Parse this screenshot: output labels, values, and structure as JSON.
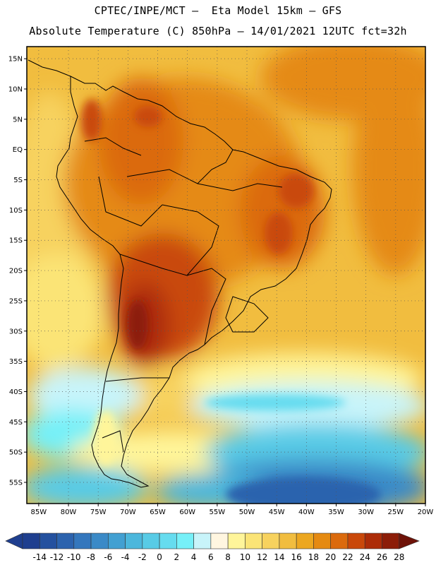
{
  "header": {
    "line1": "CPTEC/INPE/MCT –  Eta Model 15km – GFS",
    "line2": "Absolute Temperature (C) 850hPa – 14/01/2021 12UTC fct=32h"
  },
  "map": {
    "lat_labels": [
      "15N",
      "10N",
      "5N",
      "EQ",
      "5S",
      "10S",
      "15S",
      "20S",
      "25S",
      "30S",
      "35S",
      "40S",
      "45S",
      "50S",
      "55S"
    ],
    "lon_labels": [
      "85W",
      "80W",
      "75W",
      "70W",
      "65W",
      "60W",
      "55W",
      "50W",
      "45W",
      "40W",
      "35W",
      "30W",
      "25W",
      "20W"
    ],
    "lat_values": [
      15,
      10,
      5,
      0,
      -5,
      -10,
      -15,
      -20,
      -25,
      -30,
      -35,
      -40,
      -45,
      -50,
      -55
    ],
    "lon_values": [
      -85,
      -80,
      -75,
      -70,
      -65,
      -60,
      -55,
      -50,
      -45,
      -40,
      -35,
      -30,
      -25,
      -20
    ],
    "lon_range": [
      -87,
      -20
    ],
    "lat_range": [
      -58.5,
      17
    ]
  },
  "colorbar": {
    "labels": [
      "-14",
      "-12",
      "-10",
      "-8",
      "-6",
      "-4",
      "-2",
      "0",
      "2",
      "4",
      "6",
      "8",
      "10",
      "12",
      "14",
      "16",
      "18",
      "20",
      "22",
      "24",
      "26",
      "28"
    ],
    "colors": [
      "#1f3f8f",
      "#24519f",
      "#2c63ae",
      "#3477bd",
      "#3b8ac7",
      "#42a0d2",
      "#4cb7dc",
      "#58cbe6",
      "#66dcef",
      "#76f0f8",
      "#c8f4fa",
      "#fff6e0",
      "#fff59a",
      "#fbe476",
      "#f7d25e",
      "#f1bd3f",
      "#eca720",
      "#e58a12",
      "#db6a0d",
      "#c9480a",
      "#ac2c08",
      "#8c1d08",
      "#6e1208"
    ]
  }
}
